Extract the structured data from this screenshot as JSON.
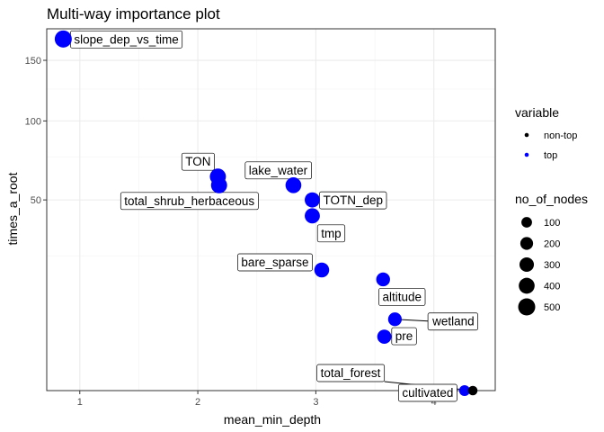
{
  "chart_data": {
    "type": "scatter",
    "title": "Multi-way importance plot",
    "xlabel": "mean_min_depth",
    "ylabel": "times_a_root",
    "y_scale": "sqrt",
    "xlim": [
      0.72,
      4.52
    ],
    "ylim": [
      0,
      180
    ],
    "x_ticks": [
      1,
      2,
      3,
      4
    ],
    "y_ticks": [
      50,
      100,
      150
    ],
    "grid": true,
    "legend_position": "right",
    "colors": {
      "top": "#0000ff",
      "non-top": "#000000"
    },
    "legends": {
      "color": {
        "title": "variable",
        "entries": [
          "non-top",
          "top"
        ]
      },
      "size": {
        "title": "no_of_nodes",
        "entries": [
          "100",
          "200",
          "300",
          "400",
          "500"
        ]
      }
    },
    "points": [
      {
        "label": "slope_dep_vs_time",
        "x": 0.86,
        "y": 170,
        "variable": "top",
        "no_of_nodes": 500
      },
      {
        "label": "TON",
        "x": 2.17,
        "y": 63,
        "variable": "top",
        "no_of_nodes": 420
      },
      {
        "label": "total_shrub_herbaceous",
        "x": 2.18,
        "y": 58,
        "variable": "top",
        "no_of_nodes": 420
      },
      {
        "label": "lake_water",
        "x": 2.81,
        "y": 58,
        "variable": "top",
        "no_of_nodes": 400
      },
      {
        "label": "TOTN_dep",
        "x": 2.97,
        "y": 50,
        "variable": "top",
        "no_of_nodes": 350
      },
      {
        "label": "tmp",
        "x": 2.97,
        "y": 42,
        "variable": "top",
        "no_of_nodes": 350
      },
      {
        "label": "bare_sparse",
        "x": 3.05,
        "y": 20,
        "variable": "top",
        "no_of_nodes": 330
      },
      {
        "label": "altitude",
        "x": 3.57,
        "y": 17,
        "variable": "top",
        "no_of_nodes": 260
      },
      {
        "label": "wetland",
        "x": 3.67,
        "y": 7,
        "variable": "top",
        "no_of_nodes": 250
      },
      {
        "label": "pre",
        "x": 3.58,
        "y": 4,
        "variable": "top",
        "no_of_nodes": 280
      },
      {
        "label": "cultivated",
        "x": 4.26,
        "y": 0,
        "variable": "top",
        "no_of_nodes": 110
      },
      {
        "label": "total_forest",
        "x": 4.33,
        "y": 0,
        "variable": "non-top",
        "no_of_nodes": 60
      }
    ]
  }
}
